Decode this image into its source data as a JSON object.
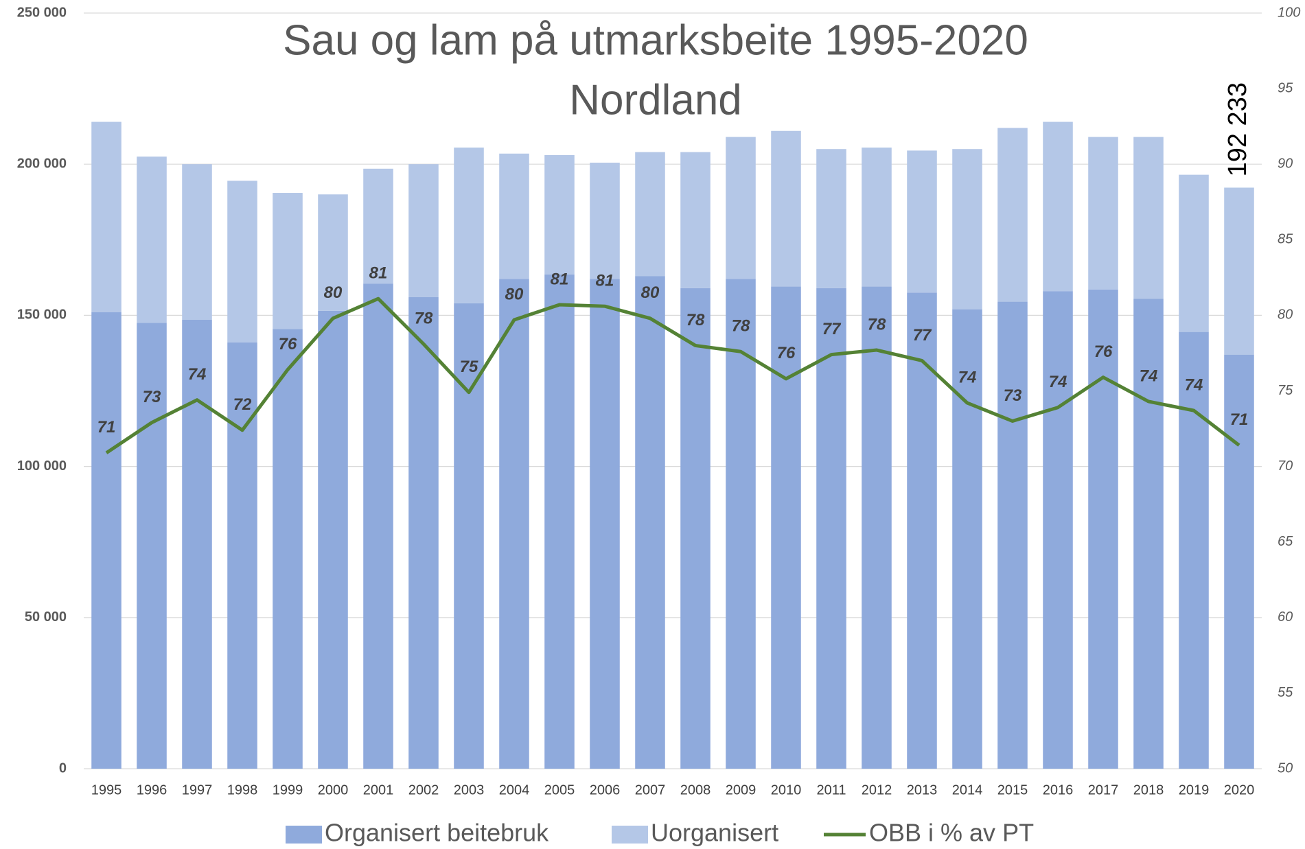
{
  "chart_data": {
    "type": "bar-line",
    "title": [
      "Sau og lam på utmarksbeite 1995-2020",
      "Nordland"
    ],
    "categories": [
      "1995",
      "1996",
      "1997",
      "1998",
      "1999",
      "2000",
      "2001",
      "2002",
      "2003",
      "2004",
      "2005",
      "2006",
      "2007",
      "2008",
      "2009",
      "2010",
      "2011",
      "2012",
      "2013",
      "2014",
      "2015",
      "2016",
      "2017",
      "2018",
      "2019",
      "2020"
    ],
    "stacked": true,
    "series": [
      {
        "name": "Organisert beitebruk",
        "color": "#8faadc",
        "type": "bar",
        "values": [
          151000,
          147500,
          148500,
          141000,
          145500,
          151500,
          160500,
          156000,
          154000,
          162000,
          163500,
          162000,
          163000,
          159000,
          162000,
          159500,
          159000,
          159500,
          157500,
          152000,
          154500,
          158000,
          158500,
          155500,
          144500,
          137000
        ]
      },
      {
        "name": "Uorganisert",
        "color": "#b4c7e7",
        "type": "bar",
        "values": [
          63000,
          55000,
          51500,
          53500,
          45000,
          38500,
          38000,
          44000,
          51500,
          41500,
          39500,
          38500,
          41000,
          45000,
          47000,
          51500,
          46000,
          46000,
          47000,
          53000,
          57500,
          56000,
          50500,
          53500,
          52000,
          55233
        ]
      },
      {
        "name": "OBB i % av PT",
        "color": "#548235",
        "type": "line",
        "axis": "y2",
        "values": [
          70.9,
          72.9,
          74.4,
          72.4,
          76.4,
          79.8,
          81.1,
          78.1,
          74.9,
          79.7,
          80.7,
          80.6,
          79.8,
          78.0,
          77.6,
          75.8,
          77.4,
          77.7,
          77.0,
          74.2,
          73.0,
          73.9,
          75.9,
          74.3,
          73.7,
          71.4
        ],
        "value_labels": [
          "71",
          "73",
          "74",
          "72",
          "76",
          "80",
          "81",
          "78",
          "75",
          "80",
          "81",
          "81",
          "80",
          "78",
          "78",
          "76",
          "77",
          "78",
          "77",
          "74",
          "73",
          "74",
          "76",
          "74",
          "74",
          "71"
        ]
      }
    ],
    "annotation": {
      "value": 192233,
      "label": "192 233"
    },
    "ylim": [
      0,
      250000
    ],
    "yticks": [
      0,
      {
        "value": 50000,
        "label": "50 000"
      },
      {
        "value": 100000,
        "label": "100 000"
      },
      {
        "value": 150000,
        "label": "150 000"
      },
      {
        "value": 200000,
        "label": "200 000"
      },
      {
        "value": 250000,
        "label": "250 000"
      }
    ],
    "y2lim": [
      50,
      100
    ],
    "y2ticks": [
      50,
      55,
      60,
      65,
      70,
      75,
      80,
      85,
      90,
      95,
      100
    ],
    "grid": true,
    "legend": "bottom"
  }
}
